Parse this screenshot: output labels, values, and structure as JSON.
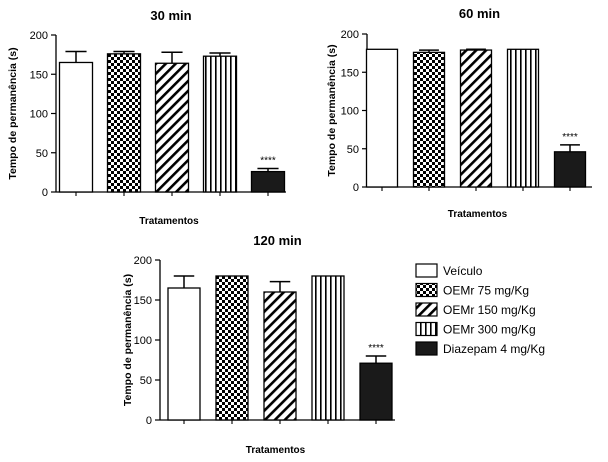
{
  "chart_data": [
    {
      "type": "bar",
      "title": "30 min",
      "xlabel": "Tratamentos",
      "ylabel": "Tempo de permanência (s)",
      "ylim": [
        0,
        200
      ],
      "yticks": [
        0,
        50,
        100,
        150,
        200
      ],
      "categories": [
        "Veículo",
        "OEMr 75 mg/Kg",
        "OEMr 150 mg/Kg",
        "OEMr 300 mg/Kg",
        "Diazepam 4 mg/Kg"
      ],
      "values": [
        165,
        176,
        164,
        173,
        26
      ],
      "errors": [
        14,
        3,
        14,
        4,
        4
      ],
      "annotations": [
        "",
        "",
        "",
        "",
        "****"
      ]
    },
    {
      "type": "bar",
      "title": "60 min",
      "xlabel": "Tratamentos",
      "ylabel": "Tempo de permanência (s)",
      "ylim": [
        0,
        200
      ],
      "yticks": [
        0,
        50,
        100,
        150,
        200
      ],
      "categories": [
        "Veículo",
        "OEMr 75 mg/Kg",
        "OEMr 150 mg/Kg",
        "OEMr 300 mg/Kg",
        "Diazepam 4 mg/Kg"
      ],
      "values": [
        180,
        176,
        179,
        180,
        46
      ],
      "errors": [
        0,
        3,
        1,
        0,
        9
      ],
      "annotations": [
        "",
        "",
        "",
        "",
        "****"
      ]
    },
    {
      "type": "bar",
      "title": "120 min",
      "xlabel": "Tratamentos",
      "ylabel": "Tempo de permanência (s)",
      "ylim": [
        0,
        200
      ],
      "yticks": [
        0,
        50,
        100,
        150,
        200
      ],
      "categories": [
        "Veículo",
        "OEMr 75 mg/Kg",
        "OEMr 150 mg/Kg",
        "OEMr 300 mg/Kg",
        "Diazepam 4 mg/Kg"
      ],
      "values": [
        165,
        180,
        160,
        180,
        71
      ],
      "errors": [
        15,
        0,
        13,
        0,
        9
      ],
      "annotations": [
        "",
        "",
        "",
        "",
        "****"
      ]
    }
  ],
  "legend": {
    "placement": "right",
    "entries": [
      {
        "label": "Veículo",
        "pattern": "empty"
      },
      {
        "label": "OEMr 75 mg/Kg",
        "pattern": "checker"
      },
      {
        "label": "OEMr 150 mg/Kg",
        "pattern": "diagonal"
      },
      {
        "label": "OEMr 300 mg/Kg",
        "pattern": "vertical"
      },
      {
        "label": "Diazepam 4 mg/Kg",
        "pattern": "solid"
      }
    ]
  },
  "colors": {
    "ink": "#000000",
    "background": "#ffffff",
    "solid_fill": "#1a1a1a"
  }
}
